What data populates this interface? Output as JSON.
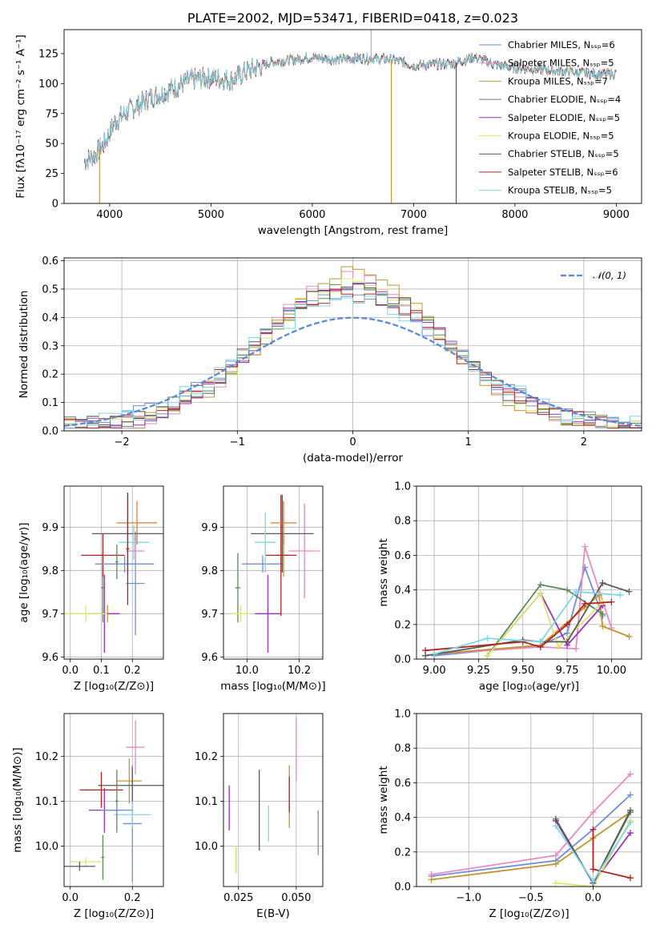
{
  "colors": {
    "Chabrier MILES": "#6f8fd8",
    "Salpeter MILES": "#e78ac3",
    "Kroupa MILES": "#c5942e",
    "Chabrier ELODIE": "#5a8a5a",
    "Salpeter ELODIE": "#9c2fbd",
    "Kroupa ELODIE": "#dce66a",
    "Chabrier STELIB": "#5a5a5a",
    "Salpeter STELIB": "#b22222",
    "Kroupa STELIB": "#7fd6e6",
    "extra_orange": "#e0782a",
    "normal_curve": "#5b8bd8"
  },
  "chart_data": [
    {
      "id": "spectrum",
      "type": "line",
      "title": "PLATE=2002, MJD=53471, FIBERID=0418, z=0.023",
      "xlabel": "wavelength [Angstrom, rest frame]",
      "ylabel": "Flux [fλ10⁻¹⁷ erg cm⁻² s⁻¹ A⁻¹]",
      "xlim": [
        3550,
        9250
      ],
      "ylim": [
        0,
        145
      ],
      "xticks": [
        "4000",
        "5000",
        "6000",
        "7000",
        "8000",
        "9000"
      ],
      "yticks": [
        "0",
        "25",
        "50",
        "75",
        "100",
        "125"
      ],
      "legend": [
        {
          "label": "Chabrier MILES, Nₛₛₚ=6",
          "series": "Chabrier MILES"
        },
        {
          "label": "Salpeter MILES, Nₛₛₚ=5",
          "series": "Salpeter MILES"
        },
        {
          "label": "Kroupa MILES, Nₛₛₚ=7",
          "series": "Kroupa MILES"
        },
        {
          "label": "Chabrier ELODIE, Nₛₛₚ=4",
          "series": "Chabrier ELODIE"
        },
        {
          "label": "Salpeter ELODIE, Nₛₛₚ=5",
          "series": "Salpeter ELODIE"
        },
        {
          "label": "Kroupa ELODIE, Nₛₛₚ=5",
          "series": "Kroupa ELODIE"
        },
        {
          "label": "Chabrier STELIB, Nₛₛₚ=5",
          "series": "Chabrier STELIB"
        },
        {
          "label": "Salpeter STELIB, Nₛₛₚ=6",
          "series": "Salpeter STELIB"
        },
        {
          "label": "Kroupa STELIB, Nₛₛₚ=5",
          "series": "Kroupa STELIB"
        }
      ],
      "continuum": [
        [
          3750,
          35
        ],
        [
          3850,
          40
        ],
        [
          3950,
          50
        ],
        [
          4050,
          68
        ],
        [
          4200,
          78
        ],
        [
          4400,
          88
        ],
        [
          4600,
          95
        ],
        [
          4800,
          103
        ],
        [
          5000,
          105
        ],
        [
          5200,
          103
        ],
        [
          5400,
          112
        ],
        [
          5600,
          118
        ],
        [
          5800,
          120
        ],
        [
          6000,
          122
        ],
        [
          6200,
          120
        ],
        [
          6400,
          121
        ],
        [
          6600,
          121
        ],
        [
          6800,
          120
        ],
        [
          7000,
          115
        ],
        [
          7200,
          116
        ],
        [
          7400,
          117
        ],
        [
          7600,
          122
        ],
        [
          7800,
          116
        ],
        [
          8000,
          113
        ],
        [
          8200,
          112
        ],
        [
          8500,
          110
        ],
        [
          8800,
          108
        ],
        [
          9000,
          108
        ]
      ],
      "drops": [
        {
          "x": 3900,
          "y": 0
        },
        {
          "x": 6780,
          "y": 0
        },
        {
          "x": 7420,
          "y": 0
        }
      ],
      "spike": {
        "x": 6580,
        "y": 145
      }
    },
    {
      "id": "residuals",
      "type": "histogram",
      "xlabel": "(data-model)/error",
      "ylabel": "Normed distribution",
      "xlim": [
        -2.5,
        2.5
      ],
      "ylim": [
        0,
        0.61
      ],
      "xticks": [
        "−2",
        "−1",
        "0",
        "1",
        "2"
      ],
      "yticks": [
        "0.0",
        "0.1",
        "0.2",
        "0.3",
        "0.4",
        "0.5",
        "0.6"
      ],
      "legend": [
        {
          "label": "𝒩(0, 1)",
          "series": "normal"
        }
      ],
      "bin_width": 0.1,
      "peak_values": {
        "Chabrier MILES": 0.47,
        "Salpeter MILES": 0.52,
        "Kroupa MILES": 0.55,
        "Chabrier ELODIE": 0.49,
        "Salpeter ELODIE": 0.5,
        "Kroupa ELODIE": 0.5,
        "Chabrier STELIB": 0.5,
        "Salpeter STELIB": 0.47,
        "Kroupa STELIB": 0.46
      }
    },
    {
      "id": "age_vs_Z",
      "type": "scatter",
      "xlabel": "Z [log₁₀(Z/Z⊙)]",
      "ylabel": "age  [log₁₀(age/yr)]",
      "xlim": [
        -0.02,
        0.3
      ],
      "ylim": [
        9.595,
        9.995
      ],
      "xticks": [
        "0.0",
        "0.1",
        "0.2"
      ],
      "yticks": [
        "9.6",
        "9.7",
        "9.8",
        "9.9"
      ],
      "points": [
        {
          "s": "Chabrier MILES",
          "x": 0.21,
          "xe": 0.03,
          "y": 9.77,
          "ye": 0.12
        },
        {
          "s": "Salpeter MILES",
          "x": 0.21,
          "xe": 0.03,
          "y": 9.845,
          "ye": 0.02
        },
        {
          "s": "Kroupa MILES",
          "x": 0.12,
          "xe": 0.02,
          "y": 9.7,
          "ye": 0.02
        },
        {
          "s": "Chabrier ELODIE",
          "x": 0.105,
          "xe": 0.005,
          "y": 9.76,
          "ye": 0.08
        },
        {
          "s": "Salpeter ELODIE",
          "x": 0.11,
          "xe": 0.05,
          "y": 9.7,
          "ye": 0.09
        },
        {
          "s": "Kroupa ELODIE",
          "x": 0.05,
          "xe": 0.07,
          "y": 9.7,
          "ye": 0.02
        },
        {
          "s": "Chabrier STELIB",
          "x": 0.185,
          "xe": 0.115,
          "y": 9.885,
          "ye": 0.095
        },
        {
          "s": "Salpeter STELIB",
          "x": 0.105,
          "xe": 0.07,
          "y": 9.835,
          "ye": 0.05
        },
        {
          "s": "Kroupa STELIB",
          "x": 0.205,
          "xe": 0.05,
          "y": 9.865,
          "ye": 0.04
        },
        {
          "s": "extra_orange",
          "x": 0.215,
          "xe": 0.065,
          "y": 9.91,
          "ye": 0.05
        },
        {
          "s": "Chabrier MILES",
          "x": 0.175,
          "xe": 0.095,
          "y": 9.815,
          "ye": 0.02
        },
        {
          "s": "Chabrier ELODIE",
          "x": 0.15,
          "xe": 0.005,
          "y": 9.82,
          "ye": 0.04
        },
        {
          "s": "Salpeter STELIB",
          "x": 0.185,
          "xe": 0.005,
          "y": 9.85,
          "ye": 0.13
        }
      ]
    },
    {
      "id": "age_vs_mass",
      "type": "scatter",
      "xlabel": "mass [log₁₀(M/M⊙)]",
      "ylabel": "",
      "xlim": [
        9.91,
        10.29
      ],
      "ylim": [
        9.595,
        9.995
      ],
      "xticks": [
        "10.0",
        "10.2"
      ],
      "yticks": [
        "9.6",
        "9.7",
        "9.8",
        "9.9"
      ],
      "points": [
        {
          "s": "Chabrier MILES",
          "x": 10.06,
          "xe": 0.08,
          "y": 9.815,
          "ye": 0.02
        },
        {
          "s": "Salpeter MILES",
          "x": 10.22,
          "xe": 0.06,
          "y": 9.845,
          "ye": 0.11
        },
        {
          "s": "Kroupa MILES",
          "x": 10.14,
          "xe": 0.03,
          "y": 9.835,
          "ye": 0.05
        },
        {
          "s": "Chabrier ELODIE",
          "x": 9.965,
          "xe": 0.01,
          "y": 9.76,
          "ye": 0.08
        },
        {
          "s": "Salpeter ELODIE",
          "x": 10.08,
          "xe": 0.05,
          "y": 9.7,
          "ye": 0.09
        },
        {
          "s": "Kroupa ELODIE",
          "x": 9.975,
          "xe": 0.04,
          "y": 9.7,
          "ye": 0.02
        },
        {
          "s": "Chabrier STELIB",
          "x": 10.135,
          "xe": 0.12,
          "y": 9.885,
          "ye": 0.09
        },
        {
          "s": "Salpeter STELIB",
          "x": 10.13,
          "xe": 0.06,
          "y": 9.835,
          "ye": 0.14
        },
        {
          "s": "Kroupa STELIB",
          "x": 10.07,
          "xe": 0.04,
          "y": 9.865,
          "ye": 0.07
        },
        {
          "s": "extra_orange",
          "x": 10.14,
          "xe": 0.05,
          "y": 9.91,
          "ye": 0.05
        }
      ]
    },
    {
      "id": "weight_vs_age",
      "type": "line",
      "xlabel": "age  [log₁₀(age/yr)]",
      "ylabel": "mass weight",
      "xlim": [
        8.9,
        10.17
      ],
      "ylim": [
        0,
        1
      ],
      "xticks": [
        "9.00",
        "9.25",
        "9.50",
        "9.75",
        "10.00"
      ],
      "yticks": [
        "0.0",
        "0.2",
        "0.4",
        "0.6",
        "0.8",
        "1.0"
      ],
      "series": [
        {
          "s": "Chabrier MILES",
          "x": [
            9.0,
            9.6,
            9.75,
            9.85,
            9.95
          ],
          "y": [
            0.02,
            0.08,
            0.15,
            0.53,
            0.25
          ]
        },
        {
          "s": "Salpeter MILES",
          "x": [
            9.0,
            9.6,
            9.8,
            9.85,
            10.0
          ],
          "y": [
            0.03,
            0.07,
            0.06,
            0.65,
            0.18
          ]
        },
        {
          "s": "Kroupa MILES",
          "x": [
            9.0,
            9.6,
            9.85,
            9.93,
            9.95,
            10.1
          ],
          "y": [
            0.03,
            0.08,
            0.3,
            0.37,
            0.19,
            0.13
          ]
        },
        {
          "s": "Chabrier ELODIE",
          "x": [
            9.3,
            9.6,
            9.75,
            9.95
          ],
          "y": [
            0.02,
            0.43,
            0.4,
            0.26
          ]
        },
        {
          "s": "Salpeter ELODIE",
          "x": [
            9.3,
            9.6,
            9.75,
            9.95
          ],
          "y": [
            0.02,
            0.38,
            0.08,
            0.31
          ]
        },
        {
          "s": "Kroupa ELODIE",
          "x": [
            9.3,
            9.6,
            9.7,
            9.95
          ],
          "y": [
            0.02,
            0.38,
            0.07,
            0.33
          ]
        },
        {
          "s": "Chabrier STELIB",
          "x": [
            8.95,
            9.5,
            9.6,
            9.75,
            9.95,
            10.1
          ],
          "y": [
            0.02,
            0.11,
            0.1,
            0.1,
            0.44,
            0.39
          ]
        },
        {
          "s": "Salpeter STELIB",
          "x": [
            8.95,
            9.5,
            9.6,
            9.75,
            9.85,
            10.0
          ],
          "y": [
            0.05,
            0.1,
            0.07,
            0.2,
            0.32,
            0.33
          ]
        },
        {
          "s": "Kroupa STELIB",
          "x": [
            9.0,
            9.3,
            9.6,
            9.8,
            10.05
          ],
          "y": [
            0.03,
            0.12,
            0.1,
            0.39,
            0.37
          ]
        }
      ]
    },
    {
      "id": "mass_vs_Z",
      "type": "scatter",
      "xlabel": "Z [log₁₀(Z/Z⊙)]",
      "ylabel": "mass [log₁₀(M/M⊙)]",
      "xlim": [
        -0.02,
        0.3
      ],
      "ylim": [
        9.91,
        10.295
      ],
      "xticks": [
        "0.0",
        "0.2"
      ],
      "yticks": [
        "10.0",
        "10.1",
        "10.2"
      ],
      "points": [
        {
          "s": "Chabrier MILES",
          "x": 0.2,
          "xe": 0.03,
          "y": 10.05,
          "ye": 0.13
        },
        {
          "s": "Salpeter MILES",
          "x": 0.21,
          "xe": 0.03,
          "y": 10.22,
          "ye": 0.06
        },
        {
          "s": "Kroupa MILES",
          "x": 0.19,
          "xe": 0.04,
          "y": 10.145,
          "ye": 0.05
        },
        {
          "s": "Chabrier ELODIE",
          "x": 0.105,
          "xe": 0.005,
          "y": 9.975,
          "ye": 0.05
        },
        {
          "s": "Salpeter ELODIE",
          "x": 0.11,
          "xe": 0.05,
          "y": 10.08,
          "ye": 0.05
        },
        {
          "s": "Kroupa ELODIE",
          "x": 0.05,
          "xe": 0.05,
          "y": 9.965,
          "ye": 0.01
        },
        {
          "s": "Chabrier STELIB",
          "x": 0.2,
          "xe": 0.11,
          "y": 10.135,
          "ye": 0.04
        },
        {
          "s": "Salpeter STELIB",
          "x": 0.1,
          "xe": 0.07,
          "y": 10.125,
          "ye": 0.04
        },
        {
          "s": "Kroupa STELIB",
          "x": 0.2,
          "xe": 0.06,
          "y": 10.07,
          "ye": 0.03
        },
        {
          "s": "Chabrier STELIB",
          "x": 0.03,
          "xe": 0.05,
          "y": 9.955,
          "ye": 0.01
        },
        {
          "s": "Chabrier ELODIE",
          "x": 0.15,
          "xe": 0.005,
          "y": 10.1,
          "ye": 0.07
        },
        {
          "s": "Chabrier MILES",
          "x": 0.15,
          "xe": 0.05,
          "y": 10.08,
          "ye": 0.01
        }
      ]
    },
    {
      "id": "mass_vs_EBV",
      "type": "scatter",
      "xlabel": "E(B-V)",
      "ylabel": "",
      "xlim": [
        0.0185,
        0.0615
      ],
      "ylim": [
        9.91,
        10.295
      ],
      "xticks": [
        "0.025",
        "0.050"
      ],
      "yticks": [
        "10.0",
        "10.1",
        "10.2"
      ],
      "points": [
        {
          "s": "Chabrier MILES",
          "x": 0.0595,
          "y": 10.03,
          "ye": 0.05
        },
        {
          "s": "Salpeter MILES",
          "x": 0.05,
          "y": 10.215,
          "ye": 0.07
        },
        {
          "s": "Kroupa MILES",
          "x": 0.047,
          "y": 10.11,
          "ye": 0.07
        },
        {
          "s": "Chabrier ELODIE",
          "x": 0.024,
          "y": 9.97,
          "ye": 0.03
        },
        {
          "s": "Salpeter ELODIE",
          "x": 0.021,
          "y": 10.085,
          "ye": 0.05
        },
        {
          "s": "Kroupa ELODIE",
          "x": 0.024,
          "y": 9.97,
          "ye": 0.03
        },
        {
          "s": "Chabrier STELIB",
          "x": 0.034,
          "y": 10.08,
          "ye": 0.09
        },
        {
          "s": "Salpeter STELIB",
          "x": 0.047,
          "y": 10.115,
          "ye": 0.04
        },
        {
          "s": "Kroupa STELIB",
          "x": 0.038,
          "y": 10.05,
          "ye": 0.04
        }
      ]
    },
    {
      "id": "weight_vs_Z",
      "type": "line",
      "xlabel": "Z [log₁₀(Z/Z⊙)]",
      "ylabel": "mass weight",
      "xlim": [
        -1.42,
        0.39
      ],
      "ylim": [
        0,
        1
      ],
      "xticks": [
        "−1.0",
        "−0.5",
        "0.0"
      ],
      "yticks": [
        "0.0",
        "0.2",
        "0.4",
        "0.6",
        "0.8",
        "1.0"
      ],
      "series": [
        {
          "s": "Chabrier MILES",
          "x": [
            -1.3,
            -0.3,
            0.0,
            0.3
          ],
          "y": [
            0.06,
            0.15,
            0.33,
            0.53
          ]
        },
        {
          "s": "Salpeter MILES",
          "x": [
            -1.3,
            -0.3,
            0.0,
            0.3
          ],
          "y": [
            0.07,
            0.18,
            0.43,
            0.65
          ]
        },
        {
          "s": "Kroupa MILES",
          "x": [
            -1.3,
            -0.3,
            0.0,
            0.3
          ],
          "y": [
            0.04,
            0.13,
            0.28,
            0.43
          ]
        },
        {
          "s": "Chabrier ELODIE",
          "x": [
            -0.3,
            0.0,
            0.3
          ],
          "y": [
            0.38,
            0.02,
            0.43
          ]
        },
        {
          "s": "Salpeter ELODIE",
          "x": [
            -0.3,
            0.0,
            0.3
          ],
          "y": [
            0.38,
            0.02,
            0.31
          ]
        },
        {
          "s": "Kroupa ELODIE",
          "x": [
            -0.3,
            0.0,
            0.3
          ],
          "y": [
            0.02,
            0.0,
            0.38
          ]
        },
        {
          "s": "Chabrier STELIB",
          "x": [
            -0.3,
            0.0,
            0.3
          ],
          "y": [
            0.39,
            0.02,
            0.44
          ]
        },
        {
          "s": "Salpeter STELIB",
          "x": [
            0.0,
            0.0,
            0.3
          ],
          "y": [
            0.33,
            0.1,
            0.05
          ]
        },
        {
          "s": "Kroupa STELIB",
          "x": [
            -0.3,
            0.0,
            0.3
          ],
          "y": [
            0.35,
            0.03,
            0.37
          ]
        }
      ]
    }
  ]
}
